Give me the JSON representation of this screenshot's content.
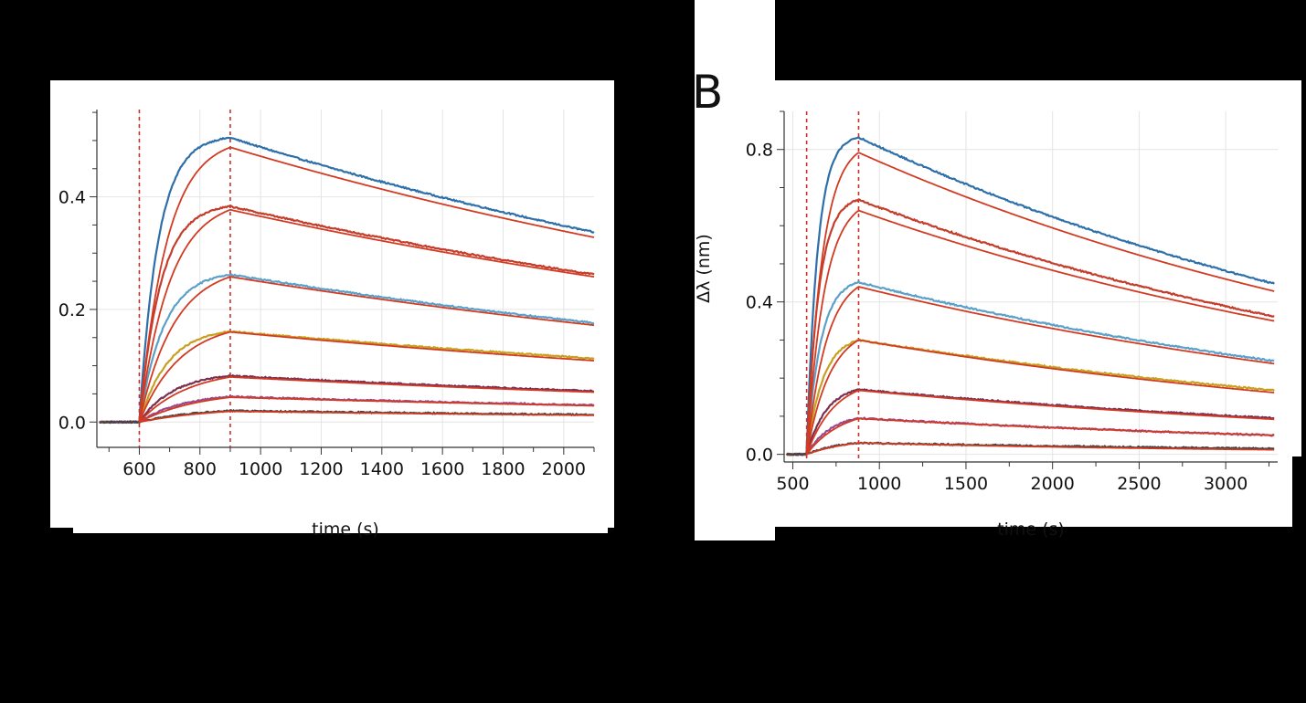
{
  "panel_b": {
    "letter": "B"
  },
  "colors": {
    "fit": "#d23a22",
    "baseline_marker": "#c8302a",
    "series": [
      "#2d6fa8",
      "#c43c2a",
      "#5aa0c8",
      "#c8a020",
      "#7a3050",
      "#9a4a8a",
      "#444444"
    ]
  },
  "chart_data": [
    {
      "type": "line",
      "xlabel": "time (s)",
      "ylabel": "",
      "xlim": [
        460,
        2100
      ],
      "ylim": [
        -0.045,
        0.555
      ],
      "x_ticks": [
        600,
        800,
        1000,
        1200,
        1400,
        1600,
        1800,
        2000
      ],
      "y_ticks": [
        0.0,
        0.2,
        0.4
      ],
      "y_tick_labels": [
        "0.0",
        "0.2",
        "0.4"
      ],
      "markers": [
        600,
        900
      ],
      "grid": true,
      "association_start": 600,
      "dissociation_start": 900,
      "end": 2100,
      "series": [
        {
          "peak": 0.505,
          "end": 0.337,
          "fit_peak": 0.488,
          "fit_end": 0.328
        },
        {
          "peak": 0.383,
          "end": 0.262,
          "fit_peak": 0.377,
          "fit_end": 0.258
        },
        {
          "peak": 0.262,
          "end": 0.176,
          "fit_peak": 0.258,
          "fit_end": 0.172
        },
        {
          "peak": 0.161,
          "end": 0.113,
          "fit_peak": 0.16,
          "fit_end": 0.109
        },
        {
          "peak": 0.082,
          "end": 0.055,
          "fit_peak": 0.08,
          "fit_end": 0.053
        },
        {
          "peak": 0.045,
          "end": 0.03,
          "fit_peak": 0.044,
          "fit_end": 0.029
        },
        {
          "peak": 0.02,
          "end": 0.013,
          "fit_peak": 0.019,
          "fit_end": 0.012
        }
      ]
    },
    {
      "type": "line",
      "xlabel": "time (s)",
      "ylabel": "Δλ (nm)",
      "xlim": [
        450,
        3300
      ],
      "ylim": [
        -0.02,
        0.9
      ],
      "x_ticks": [
        500,
        1000,
        1500,
        2000,
        2500,
        3000
      ],
      "y_ticks": [
        0.0,
        0.4,
        0.8
      ],
      "y_tick_labels": [
        "0.0",
        "0.4",
        "0.8"
      ],
      "markers": [
        580,
        880
      ],
      "grid": true,
      "association_start": 580,
      "dissociation_start": 880,
      "end": 3280,
      "series": [
        {
          "peak": 0.832,
          "end": 0.448,
          "fit_peak": 0.792,
          "fit_end": 0.428
        },
        {
          "peak": 0.668,
          "end": 0.362,
          "fit_peak": 0.64,
          "fit_end": 0.35
        },
        {
          "peak": 0.452,
          "end": 0.245,
          "fit_peak": 0.44,
          "fit_end": 0.238
        },
        {
          "peak": 0.3,
          "end": 0.168,
          "fit_peak": 0.3,
          "fit_end": 0.162
        },
        {
          "peak": 0.17,
          "end": 0.095,
          "fit_peak": 0.168,
          "fit_end": 0.092
        },
        {
          "peak": 0.095,
          "end": 0.05,
          "fit_peak": 0.094,
          "fit_end": 0.05
        },
        {
          "peak": 0.03,
          "end": 0.015,
          "fit_peak": 0.03,
          "fit_end": 0.012
        }
      ]
    }
  ]
}
